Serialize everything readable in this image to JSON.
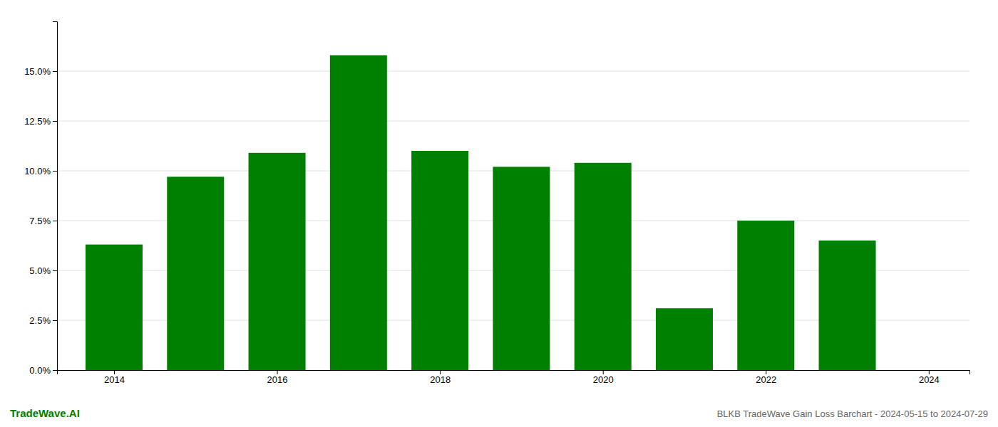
{
  "chart_data": {
    "type": "bar",
    "x": [
      2014,
      2015,
      2016,
      2017,
      2018,
      2019,
      2020,
      2021,
      2022,
      2023
    ],
    "values": [
      0.063,
      0.097,
      0.109,
      0.158,
      0.11,
      0.102,
      0.104,
      0.031,
      0.075,
      0.065
    ],
    "color": "#008000",
    "xlim": [
      2013.3,
      2024.5
    ],
    "xticks": [
      2014,
      2016,
      2018,
      2020,
      2022,
      2024
    ],
    "ylim": [
      0,
      0.175
    ],
    "yticks": [
      {
        "value": 0.0,
        "label": "0.0%"
      },
      {
        "value": 0.025,
        "label": "2.5%"
      },
      {
        "value": 0.05,
        "label": "5.0%"
      },
      {
        "value": 0.075,
        "label": "7.5%"
      },
      {
        "value": 0.1,
        "label": "10.0%"
      },
      {
        "value": 0.125,
        "label": "12.5%"
      },
      {
        "value": 0.15,
        "label": "15.0%"
      }
    ],
    "grid": true,
    "annotations": [
      "TradeWave.AI",
      "BLKB TradeWave Gain Loss Barchart - 2024-05-15 to 2024-07-29"
    ]
  }
}
